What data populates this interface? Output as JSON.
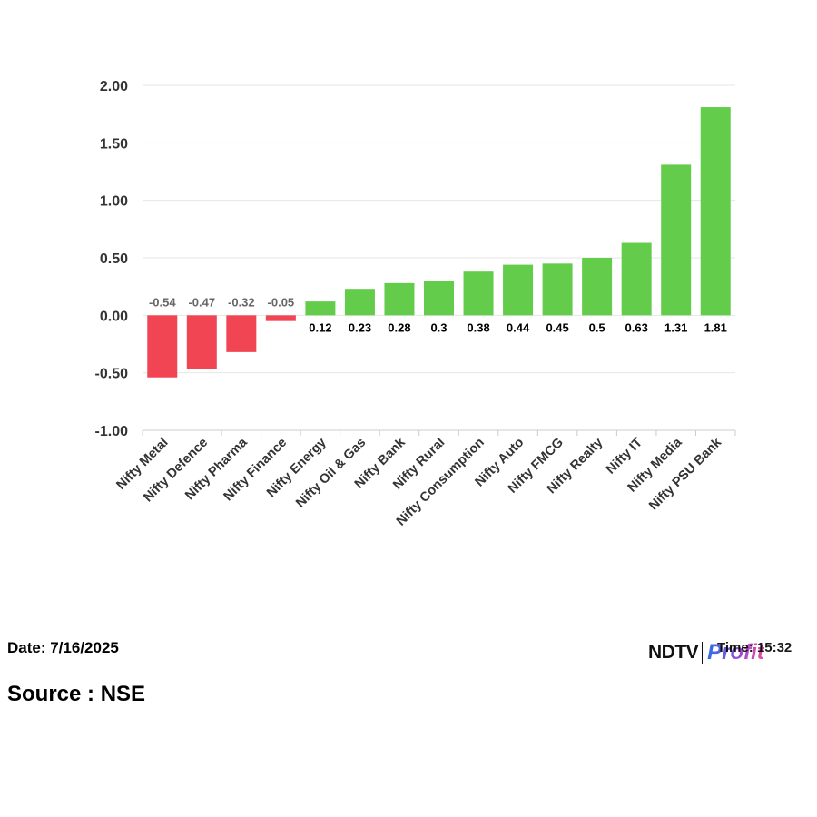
{
  "chart_data": {
    "type": "bar",
    "title": "",
    "xlabel": "",
    "ylabel": "",
    "categories": [
      "Nifty Metal",
      "Nifty Defence",
      "Nifty Pharma",
      "Nifty Finance",
      "Nifty Energy",
      "Nifty Oil & Gas",
      "Nifty Bank",
      "Nifty Rural",
      "Nifty Consumption",
      "Nifty Auto",
      "Nifty FMCG",
      "Nifty Realty",
      "Nifty IT",
      "Nifty Media",
      "Nifty PSU Bank"
    ],
    "values": [
      -0.54,
      -0.47,
      -0.32,
      -0.05,
      0.12,
      0.23,
      0.28,
      0.3,
      0.38,
      0.44,
      0.45,
      0.5,
      0.63,
      1.31,
      1.81
    ],
    "data_labels": [
      "-0.54",
      "-0.47",
      "-0.32",
      "-0.05",
      "0.12",
      "0.23",
      "0.28",
      "0.3",
      "0.38",
      "0.44",
      "0.45",
      "0.5",
      "0.63",
      "1.31",
      "1.81"
    ],
    "ylim": [
      -1.0,
      2.0
    ],
    "yticks": [
      -1.0,
      -0.5,
      0.0,
      0.5,
      1.0,
      1.5,
      2.0
    ],
    "ytick_labels": [
      "-1.00",
      "-0.50",
      "0.00",
      "0.50",
      "1.00",
      "1.50",
      "2.00"
    ],
    "grid": true,
    "legend": "none",
    "colors": {
      "positive": "#63cc4b",
      "negative": "#f24554",
      "grid": "#e6e6e6",
      "axis": "#cccccc"
    }
  },
  "footer": {
    "date": "Date: 7/16/2025",
    "source": "Source : NSE",
    "time": "Time: 15:32"
  },
  "logo": {
    "brand": "NDTV",
    "sub": "Profit"
  }
}
